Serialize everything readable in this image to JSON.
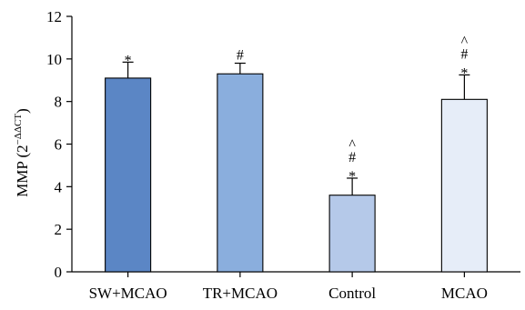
{
  "chart_data": {
    "type": "bar",
    "categories": [
      "SW+MCAO",
      "TR+MCAO",
      "Control",
      "MCAO"
    ],
    "values": [
      9.1,
      9.3,
      3.6,
      8.1
    ],
    "errors": [
      0.75,
      0.5,
      0.8,
      1.15
    ],
    "colors": [
      "#5b86c5",
      "#8aaedd",
      "#b5c9e9",
      "#e6edf8"
    ],
    "annotations": [
      [
        "*"
      ],
      [
        "#"
      ],
      [
        "^",
        "#",
        "*"
      ],
      [
        "^",
        "#",
        "*"
      ]
    ],
    "ylabel": "MMP (2",
    "ylabel_sup": "−ΔΔCT",
    "ylabel_close": ")",
    "ylim": [
      0,
      12
    ],
    "yticks": [
      0,
      2,
      4,
      6,
      8,
      10,
      12
    ],
    "grid": false
  }
}
